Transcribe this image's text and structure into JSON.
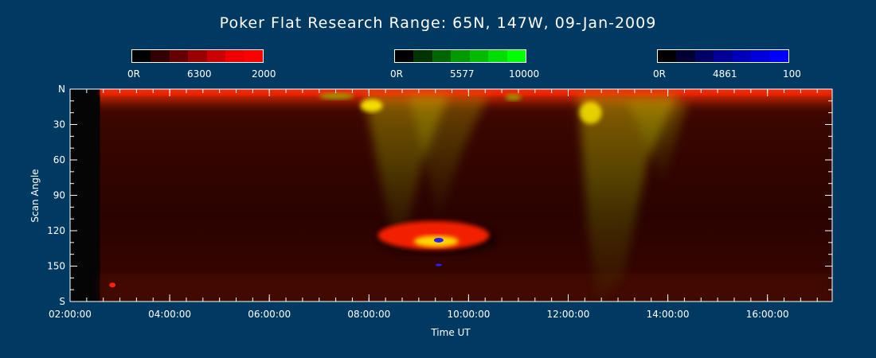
{
  "chart_data": {
    "type": "heatmap",
    "title": "Poker Flat Research Range: 65N, 147W, 09-Jan-2009",
    "xlabel": "Time UT",
    "ylabel": "Scan Angle",
    "x_range_hours": [
      2,
      17.3
    ],
    "y_range_deg": [
      0,
      180
    ],
    "x_ticks": [
      {
        "h": 2,
        "label": "02:00:00"
      },
      {
        "h": 4,
        "label": "04:00:00"
      },
      {
        "h": 6,
        "label": "06:00:00"
      },
      {
        "h": 8,
        "label": "08:00:00"
      },
      {
        "h": 10,
        "label": "10:00:00"
      },
      {
        "h": 12,
        "label": "12:00:00"
      },
      {
        "h": 14,
        "label": "14:00:00"
      },
      {
        "h": 16,
        "label": "16:00:00"
      }
    ],
    "y_ticks": [
      {
        "v": 0,
        "label": "N"
      },
      {
        "v": 30,
        "label": "30"
      },
      {
        "v": 60,
        "label": "60"
      },
      {
        "v": 90,
        "label": "90"
      },
      {
        "v": 120,
        "label": "120"
      },
      {
        "v": 150,
        "label": "150"
      },
      {
        "v": 180,
        "label": "S"
      }
    ],
    "colorbars": [
      {
        "name": "6300",
        "min_label": "0R",
        "mid_label": "6300",
        "max_label": "2000",
        "colors": [
          "#000000",
          "#330000",
          "#660000",
          "#990000",
          "#cc0000",
          "#ee0000",
          "#ff0000"
        ]
      },
      {
        "name": "5577",
        "min_label": "0R",
        "mid_label": "5577",
        "max_label": "10000",
        "colors": [
          "#000000",
          "#003300",
          "#006600",
          "#009900",
          "#00bb00",
          "#00dd00",
          "#00ff00"
        ]
      },
      {
        "name": "4861",
        "min_label": "0R",
        "mid_label": "4861",
        "max_label": "100",
        "colors": [
          "#000000",
          "#000033",
          "#000066",
          "#000099",
          "#0000bb",
          "#0000dd",
          "#0000ff"
        ]
      }
    ],
    "data_gap_hours": [
      2.0,
      2.6
    ],
    "colors": {
      "background": "#003A63",
      "field": "#3a0500",
      "red_emission": "#ff2200",
      "green_emission": "#88cc00",
      "yellow_emission": "#ffee00",
      "blue_emission": "#2222ff"
    }
  }
}
